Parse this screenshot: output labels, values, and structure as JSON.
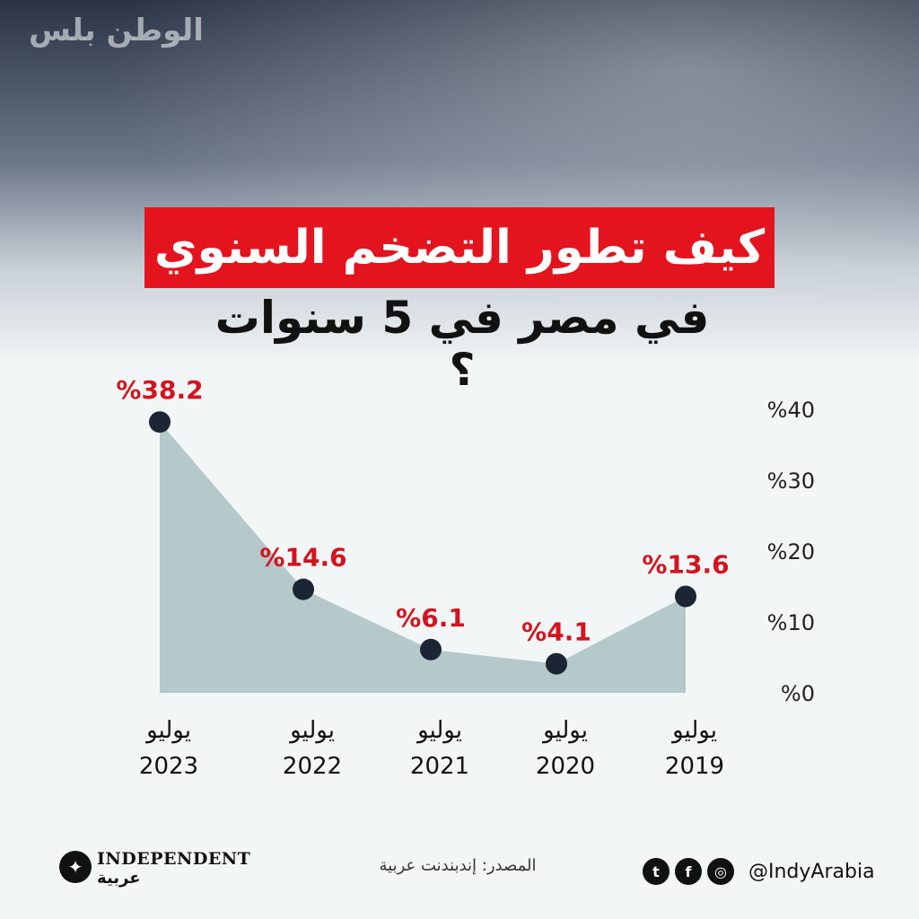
{
  "header": {
    "watermark": "الوطن بلس",
    "title": "كيف تطور التضخم السنوي",
    "subtitle": "في مصر في 5 سنوات ؟"
  },
  "chart_data": {
    "type": "area",
    "categories": [
      {
        "month": "يوليو",
        "year": "2023"
      },
      {
        "month": "يوليو",
        "year": "2022"
      },
      {
        "month": "يوليو",
        "year": "2021"
      },
      {
        "month": "يوليو",
        "year": "2020"
      },
      {
        "month": "يوليو",
        "year": "2019"
      }
    ],
    "values": [
      38.2,
      14.6,
      6.1,
      4.1,
      13.6
    ],
    "data_labels": [
      "%38.2",
      "%14.6",
      "%6.1",
      "%4.1",
      "%13.6"
    ],
    "y_ticks": [
      "%40",
      "%30",
      "%20",
      "%10",
      "%0"
    ],
    "y_tick_values": [
      40,
      30,
      20,
      10,
      0
    ],
    "ylim": [
      0,
      40
    ],
    "grid": false,
    "x_axis_direction": "right-to-left",
    "colors": {
      "area": "#a9bfc2",
      "marker": "#1b2533",
      "label": "#d3141f"
    }
  },
  "footer": {
    "logo_en": "INDEPENDENT",
    "logo_ar": "عربية",
    "source": "المصدر: إندبندنت عربية",
    "handle": "@IndyArabia",
    "icons": [
      "twitter-icon",
      "facebook-icon",
      "instagram-icon"
    ]
  },
  "colors": {
    "title_bg": "#e3141e",
    "title_text": "#ffffff"
  }
}
